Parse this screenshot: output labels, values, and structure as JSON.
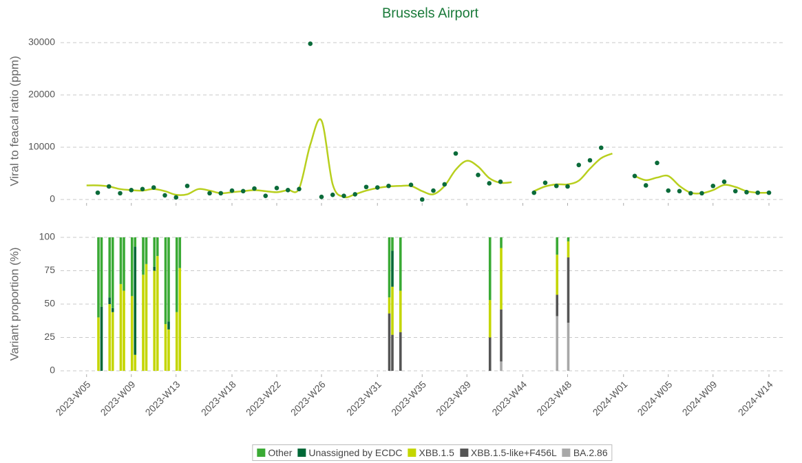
{
  "chart_data": [
    {
      "type": "scatter",
      "title": "Brussels Airport",
      "ylabel": "Viral to feacal ratio (ppm)",
      "x": [
        "2023-W06",
        "2023-W07",
        "2023-W08",
        "2023-W09",
        "2023-W10",
        "2023-W11",
        "2023-W12",
        "2023-W13",
        "2023-W14",
        "2023-W16",
        "2023-W17",
        "2023-W18",
        "2023-W19",
        "2023-W20",
        "2023-W21",
        "2023-W22",
        "2023-W23",
        "2023-W24",
        "2023-W25",
        "2023-W26",
        "2023-W27",
        "2023-W28",
        "2023-W29",
        "2023-W30",
        "2023-W31",
        "2023-W32",
        "2023-W34",
        "2023-W35",
        "2023-W36",
        "2023-W37",
        "2023-W38",
        "2023-W40",
        "2023-W41",
        "2023-W42",
        "2023-W45",
        "2023-W46",
        "2023-W47",
        "2023-W48",
        "2023-W49",
        "2023-W50",
        "2023-W51",
        "2024-W02",
        "2024-W03",
        "2024-W04",
        "2024-W05",
        "2024-W06",
        "2024-W07",
        "2024-W08",
        "2024-W09",
        "2024-W10",
        "2024-W11",
        "2024-W12",
        "2024-W13",
        "2024-W14"
      ],
      "values": [
        1300,
        2500,
        1200,
        1800,
        2000,
        2300,
        800,
        400,
        2600,
        1200,
        1200,
        1700,
        1600,
        2100,
        700,
        2200,
        1800,
        2000,
        29800,
        500,
        900,
        700,
        1000,
        2400,
        2300,
        2600,
        2800,
        0,
        1700,
        2900,
        8800,
        4700,
        3100,
        3400,
        1300,
        3200,
        2600,
        2500,
        6600,
        7500,
        9900,
        4500,
        2700,
        7000,
        1700,
        1600,
        1200,
        1200,
        2600,
        3400,
        1600,
        1400,
        1300,
        1300
      ],
      "color": "#0b6b3a",
      "line": {
        "color": "#b8cf1e",
        "x": [
          "2023-W05",
          "2023-W06",
          "2023-W07",
          "2023-W08",
          "2023-W09",
          "2023-W10",
          "2023-W11",
          "2023-W12",
          "2023-W13",
          "2023-W14",
          "2023-W15",
          "2023-W16",
          "2023-W17",
          "2023-W18",
          "2023-W19",
          "2023-W20",
          "2023-W21",
          "2023-W22",
          "2023-W23",
          "2023-W24",
          "2023-W25",
          "2023-W26",
          "2023-W27",
          "2023-W28",
          "2023-W29",
          "2023-W30",
          "2023-W31",
          "2023-W32",
          "2023-W33",
          "2023-W34",
          "2023-W35",
          "2023-W36",
          "2023-W37",
          "2023-W38",
          "2023-W39",
          "2023-W40",
          "2023-W41",
          "2023-W42",
          "2023-W43",
          "2023-W44",
          "2023-W45",
          "2023-W46",
          "2023-W47",
          "2023-W48",
          "2023-W49",
          "2023-W50",
          "2023-W51",
          "2023-W52",
          "2024-W01",
          "2024-W02",
          "2024-W03",
          "2024-W04",
          "2024-W05",
          "2024-W06",
          "2024-W07",
          "2024-W08",
          "2024-W09",
          "2024-W10",
          "2024-W11",
          "2024-W12",
          "2024-W13",
          "2024-W14"
        ],
        "values": [
          2700,
          2700,
          2500,
          2000,
          1800,
          1700,
          2000,
          1600,
          900,
          1000,
          2000,
          1700,
          1200,
          1400,
          1600,
          1800,
          1600,
          1400,
          1800,
          2100,
          10500,
          15100,
          2900,
          500,
          1000,
          1700,
          2200,
          2500,
          2600,
          2600,
          1600,
          1000,
          2600,
          5700,
          7400,
          6300,
          4100,
          3200,
          3300,
          null,
          1600,
          2500,
          2900,
          2900,
          3600,
          5900,
          7900,
          8800,
          null,
          4500,
          3700,
          4200,
          4500,
          2600,
          1300,
          1200,
          1800,
          2800,
          2400,
          1600,
          1300,
          1300
        ]
      },
      "xlim": [
        "2023-W03",
        "2024-W15"
      ],
      "ylim": [
        0,
        30000
      ],
      "yticks": [
        0,
        10000,
        20000,
        30000
      ],
      "grid": true
    },
    {
      "type": "bar",
      "stacked": true,
      "ylabel": "Variant proportion (%)",
      "x": [
        "2023-W06",
        "2023-W06",
        "2023-W07",
        "2023-W07",
        "2023-W08",
        "2023-W08",
        "2023-W09",
        "2023-W09",
        "2023-W10",
        "2023-W10",
        "2023-W11",
        "2023-W11",
        "2023-W12",
        "2023-W12",
        "2023-W13",
        "2023-W13",
        "2023-W32",
        "2023-W32",
        "2023-W33",
        "2023-W41",
        "2023-W42",
        "2023-W47",
        "2023-W48"
      ],
      "series": [
        {
          "name": "Other",
          "color": "#3aaa35",
          "values": [
            60,
            52,
            45,
            53,
            35,
            40,
            44,
            7,
            28,
            20,
            22,
            14,
            65,
            63,
            56,
            23,
            45,
            10,
            40,
            47,
            8,
            13,
            3
          ]
        },
        {
          "name": "Unassigned by ECDC",
          "color": "#006837",
          "values": [
            0,
            48,
            5,
            3,
            0,
            0,
            0,
            81,
            0,
            0,
            3,
            0,
            0,
            6,
            0,
            0,
            0,
            27,
            0,
            0,
            0,
            0,
            0
          ]
        },
        {
          "name": "XBB.1.5",
          "color": "#c4d600",
          "values": [
            40,
            0,
            50,
            44,
            65,
            60,
            56,
            12,
            72,
            80,
            75,
            86,
            35,
            31,
            44,
            77,
            12,
            36,
            31,
            28,
            46,
            30,
            12
          ]
        },
        {
          "name": "XBB.1.5-like+F456L",
          "color": "#555555",
          "values": [
            0,
            0,
            0,
            0,
            0,
            0,
            0,
            0,
            0,
            0,
            0,
            0,
            0,
            0,
            0,
            0,
            43,
            27,
            29,
            25,
            39,
            16,
            49
          ]
        },
        {
          "name": "BA.2.86",
          "color": "#a8a8a8",
          "values": [
            0,
            0,
            0,
            0,
            0,
            0,
            0,
            0,
            0,
            0,
            0,
            0,
            0,
            0,
            0,
            0,
            0,
            0,
            0,
            0,
            7,
            41,
            36
          ]
        }
      ],
      "xlim": [
        "2023-W03",
        "2024-W15"
      ],
      "xticks": [
        "2023-W05",
        "2023-W09",
        "2023-W13",
        "2023-W18",
        "2023-W22",
        "2023-W26",
        "2023-W31",
        "2023-W35",
        "2023-W39",
        "2023-W44",
        "2023-W48",
        "2024-W01",
        "2024-W05",
        "2024-W09",
        "2024-W14"
      ],
      "ylim": [
        0,
        100
      ],
      "yticks": [
        0,
        25,
        50,
        75,
        100
      ],
      "grid": true,
      "legend": "bottom"
    }
  ]
}
